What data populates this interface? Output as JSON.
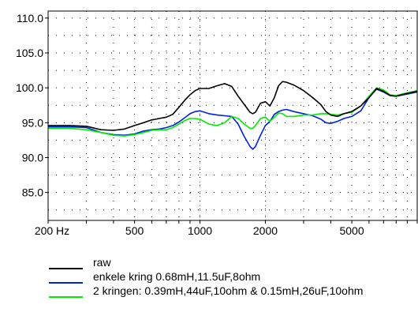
{
  "chart_data": {
    "type": "line",
    "title": "",
    "xlabel": "",
    "ylabel": "",
    "x_scale": "log",
    "xlim": [
      200,
      10000
    ],
    "ylim": [
      81,
      111
    ],
    "y_ticks": [
      {
        "value": 110,
        "label": "110.0"
      },
      {
        "value": 105,
        "label": "105.0"
      },
      {
        "value": 100,
        "label": "100.0"
      },
      {
        "value": 95,
        "label": "95.0"
      },
      {
        "value": 90,
        "label": "90.0"
      },
      {
        "value": 85,
        "label": "85.0"
      }
    ],
    "x_ticks": [
      {
        "value": 200,
        "label": "200 Hz"
      },
      {
        "value": 500,
        "label": "500"
      },
      {
        "value": 1000,
        "label": "1000"
      },
      {
        "value": 2000,
        "label": "2000"
      },
      {
        "value": 5000,
        "label": "5000"
      }
    ],
    "grid": true,
    "legend_position": "bottom",
    "series": [
      {
        "name": "raw",
        "color": "#000000",
        "points": [
          [
            200,
            94.6
          ],
          [
            250,
            94.6
          ],
          [
            300,
            94.5
          ],
          [
            350,
            94.0
          ],
          [
            400,
            93.9
          ],
          [
            450,
            94.1
          ],
          [
            500,
            94.6
          ],
          [
            550,
            95.0
          ],
          [
            600,
            95.4
          ],
          [
            650,
            95.6
          ],
          [
            700,
            95.8
          ],
          [
            750,
            96.2
          ],
          [
            800,
            97.2
          ],
          [
            850,
            98.2
          ],
          [
            900,
            99.0
          ],
          [
            950,
            99.6
          ],
          [
            1000,
            99.9
          ],
          [
            1100,
            99.9
          ],
          [
            1200,
            100.3
          ],
          [
            1300,
            100.6
          ],
          [
            1400,
            100.2
          ],
          [
            1500,
            98.8
          ],
          [
            1600,
            97.6
          ],
          [
            1700,
            96.5
          ],
          [
            1750,
            96.3
          ],
          [
            1800,
            96.5
          ],
          [
            1900,
            97.8
          ],
          [
            2000,
            98.0
          ],
          [
            2100,
            97.4
          ],
          [
            2200,
            98.6
          ],
          [
            2300,
            100.3
          ],
          [
            2400,
            100.9
          ],
          [
            2500,
            100.8
          ],
          [
            2700,
            100.4
          ],
          [
            3000,
            99.6
          ],
          [
            3300,
            98.6
          ],
          [
            3600,
            97.6
          ],
          [
            3800,
            96.6
          ],
          [
            4000,
            96.1
          ],
          [
            4300,
            95.9
          ],
          [
            4600,
            96.3
          ],
          [
            5000,
            96.6
          ],
          [
            5500,
            97.4
          ],
          [
            6000,
            98.6
          ],
          [
            6500,
            99.9
          ],
          [
            7000,
            99.5
          ],
          [
            7500,
            98.9
          ],
          [
            8000,
            98.8
          ],
          [
            9000,
            99.2
          ],
          [
            10000,
            99.5
          ]
        ]
      },
      {
        "name": "enkele kring 0.68mH,11.5uF,8ohm",
        "color": "#0022dd",
        "points": [
          [
            200,
            94.4
          ],
          [
            250,
            94.4
          ],
          [
            300,
            94.3
          ],
          [
            350,
            93.6
          ],
          [
            400,
            93.3
          ],
          [
            450,
            93.2
          ],
          [
            500,
            93.4
          ],
          [
            550,
            93.8
          ],
          [
            600,
            94.0
          ],
          [
            650,
            94.1
          ],
          [
            700,
            94.3
          ],
          [
            750,
            94.6
          ],
          [
            800,
            95.1
          ],
          [
            850,
            95.7
          ],
          [
            900,
            96.3
          ],
          [
            950,
            96.6
          ],
          [
            1000,
            96.7
          ],
          [
            1100,
            96.3
          ],
          [
            1200,
            96.1
          ],
          [
            1300,
            96.0
          ],
          [
            1400,
            95.9
          ],
          [
            1500,
            94.8
          ],
          [
            1600,
            93.0
          ],
          [
            1700,
            91.6
          ],
          [
            1750,
            91.2
          ],
          [
            1800,
            91.6
          ],
          [
            1900,
            93.2
          ],
          [
            2000,
            94.6
          ],
          [
            2100,
            95.2
          ],
          [
            2200,
            96.2
          ],
          [
            2300,
            96.6
          ],
          [
            2400,
            96.8
          ],
          [
            2500,
            96.9
          ],
          [
            2700,
            96.6
          ],
          [
            3000,
            96.3
          ],
          [
            3300,
            96.0
          ],
          [
            3600,
            95.5
          ],
          [
            3800,
            95.0
          ],
          [
            4000,
            94.9
          ],
          [
            4300,
            95.2
          ],
          [
            4600,
            95.6
          ],
          [
            5000,
            95.9
          ],
          [
            5500,
            96.7
          ],
          [
            6000,
            98.6
          ],
          [
            6500,
            99.8
          ],
          [
            7000,
            99.4
          ],
          [
            7500,
            98.9
          ],
          [
            8000,
            98.8
          ],
          [
            9000,
            99.1
          ],
          [
            10000,
            99.4
          ]
        ]
      },
      {
        "name": "2 kringen: 0.39mH,44uF,10ohm & 0.15mH,26uF,10ohm",
        "color": "#00ee00",
        "points": [
          [
            200,
            94.2
          ],
          [
            250,
            94.2
          ],
          [
            300,
            94.0
          ],
          [
            350,
            93.6
          ],
          [
            400,
            93.2
          ],
          [
            450,
            93.1
          ],
          [
            500,
            93.3
          ],
          [
            550,
            93.6
          ],
          [
            600,
            93.9
          ],
          [
            650,
            94.0
          ],
          [
            700,
            94.0
          ],
          [
            750,
            94.3
          ],
          [
            800,
            94.8
          ],
          [
            850,
            95.3
          ],
          [
            900,
            95.6
          ],
          [
            950,
            95.6
          ],
          [
            1000,
            95.5
          ],
          [
            1100,
            94.8
          ],
          [
            1200,
            94.6
          ],
          [
            1300,
            95.0
          ],
          [
            1400,
            95.9
          ],
          [
            1500,
            95.6
          ],
          [
            1600,
            94.8
          ],
          [
            1700,
            94.2
          ],
          [
            1750,
            94.2
          ],
          [
            1800,
            94.6
          ],
          [
            1900,
            95.6
          ],
          [
            2000,
            95.8
          ],
          [
            2100,
            95.2
          ],
          [
            2200,
            95.8
          ],
          [
            2300,
            96.4
          ],
          [
            2400,
            96.3
          ],
          [
            2500,
            95.9
          ],
          [
            2700,
            95.9
          ],
          [
            3000,
            96.1
          ],
          [
            3300,
            96.1
          ],
          [
            3600,
            96.3
          ],
          [
            3800,
            96.3
          ],
          [
            4000,
            96.2
          ],
          [
            4300,
            96.1
          ],
          [
            4600,
            96.3
          ],
          [
            5000,
            96.5
          ],
          [
            5500,
            97.4
          ],
          [
            6000,
            98.8
          ],
          [
            6500,
            100.0
          ],
          [
            7000,
            99.7
          ],
          [
            7500,
            99.0
          ],
          [
            8000,
            98.9
          ],
          [
            9000,
            99.3
          ],
          [
            10000,
            99.6
          ]
        ]
      }
    ]
  }
}
